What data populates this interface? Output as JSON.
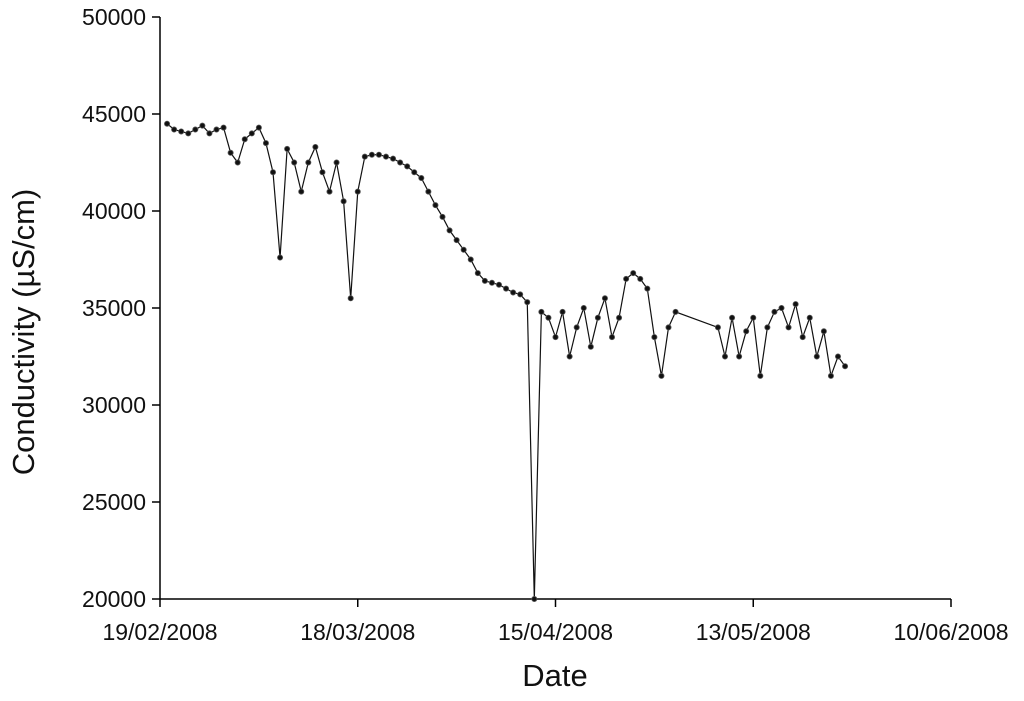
{
  "chart_data": {
    "type": "line",
    "x_label": "Date",
    "y_label": "Conductivity (µS/cm)",
    "xlim": [
      "2008-02-19",
      "2008-06-10"
    ],
    "xticks": [
      {
        "value": "2008-02-19",
        "label": "19/02/2008"
      },
      {
        "value": "2008-03-18",
        "label": "18/03/2008"
      },
      {
        "value": "2008-04-15",
        "label": "15/04/2008"
      },
      {
        "value": "2008-05-13",
        "label": "13/05/2008"
      },
      {
        "value": "2008-06-10",
        "label": "10/06/2008"
      }
    ],
    "ylim": [
      20000,
      50000
    ],
    "yticks": [
      20000,
      25000,
      30000,
      35000,
      40000,
      45000,
      50000
    ],
    "grid": false,
    "series": [
      {
        "name": "Conductivity",
        "color": "#111111",
        "x": [
          "2008-02-20",
          "2008-02-21",
          "2008-02-22",
          "2008-02-23",
          "2008-02-24",
          "2008-02-25",
          "2008-02-26",
          "2008-02-27",
          "2008-02-28",
          "2008-02-29",
          "2008-03-01",
          "2008-03-02",
          "2008-03-03",
          "2008-03-04",
          "2008-03-05",
          "2008-03-06",
          "2008-03-07",
          "2008-03-08",
          "2008-03-09",
          "2008-03-10",
          "2008-03-11",
          "2008-03-12",
          "2008-03-13",
          "2008-03-14",
          "2008-03-15",
          "2008-03-16",
          "2008-03-17",
          "2008-03-18",
          "2008-03-19",
          "2008-03-20",
          "2008-03-21",
          "2008-03-22",
          "2008-03-23",
          "2008-03-24",
          "2008-03-25",
          "2008-03-26",
          "2008-03-27",
          "2008-03-28",
          "2008-03-29",
          "2008-03-30",
          "2008-03-31",
          "2008-04-01",
          "2008-04-02",
          "2008-04-03",
          "2008-04-04",
          "2008-04-05",
          "2008-04-06",
          "2008-04-07",
          "2008-04-08",
          "2008-04-09",
          "2008-04-10",
          "2008-04-11",
          "2008-04-12",
          "2008-04-13",
          "2008-04-14",
          "2008-04-15",
          "2008-04-16",
          "2008-04-17",
          "2008-04-18",
          "2008-04-19",
          "2008-04-20",
          "2008-04-21",
          "2008-04-22",
          "2008-04-23",
          "2008-04-24",
          "2008-04-25",
          "2008-04-26",
          "2008-04-27",
          "2008-04-28",
          "2008-04-29",
          "2008-04-30",
          "2008-05-01",
          "2008-05-02",
          "2008-05-08",
          "2008-05-09",
          "2008-05-10",
          "2008-05-11",
          "2008-05-12",
          "2008-05-13",
          "2008-05-14",
          "2008-05-15",
          "2008-05-16",
          "2008-05-17",
          "2008-05-18",
          "2008-05-19",
          "2008-05-20",
          "2008-05-21",
          "2008-05-22",
          "2008-05-23",
          "2008-05-24",
          "2008-05-25",
          "2008-05-26"
        ],
        "values": [
          44500,
          44200,
          44100,
          44000,
          44200,
          44400,
          44000,
          44200,
          44300,
          43000,
          42500,
          43700,
          44000,
          44300,
          43500,
          42000,
          37600,
          43200,
          42500,
          41000,
          42500,
          43300,
          42000,
          41000,
          42500,
          40500,
          35500,
          41000,
          42800,
          42900,
          42900,
          42800,
          42700,
          42500,
          42300,
          42000,
          41700,
          41000,
          40300,
          39700,
          39000,
          38500,
          38000,
          37500,
          36800,
          36400,
          36300,
          36200,
          36000,
          35800,
          35700,
          35300,
          20000,
          34800,
          34500,
          33500,
          34800,
          32500,
          34000,
          35000,
          33000,
          34500,
          35500,
          33500,
          34500,
          36500,
          36800,
          36500,
          36000,
          33500,
          31500,
          34000,
          34800,
          34000,
          32500,
          34500,
          32500,
          33800,
          34500,
          31500,
          34000,
          34800,
          35000,
          34000,
          35200,
          33500,
          34500,
          32500,
          33800,
          31500,
          32500,
          32000
        ]
      }
    ]
  }
}
